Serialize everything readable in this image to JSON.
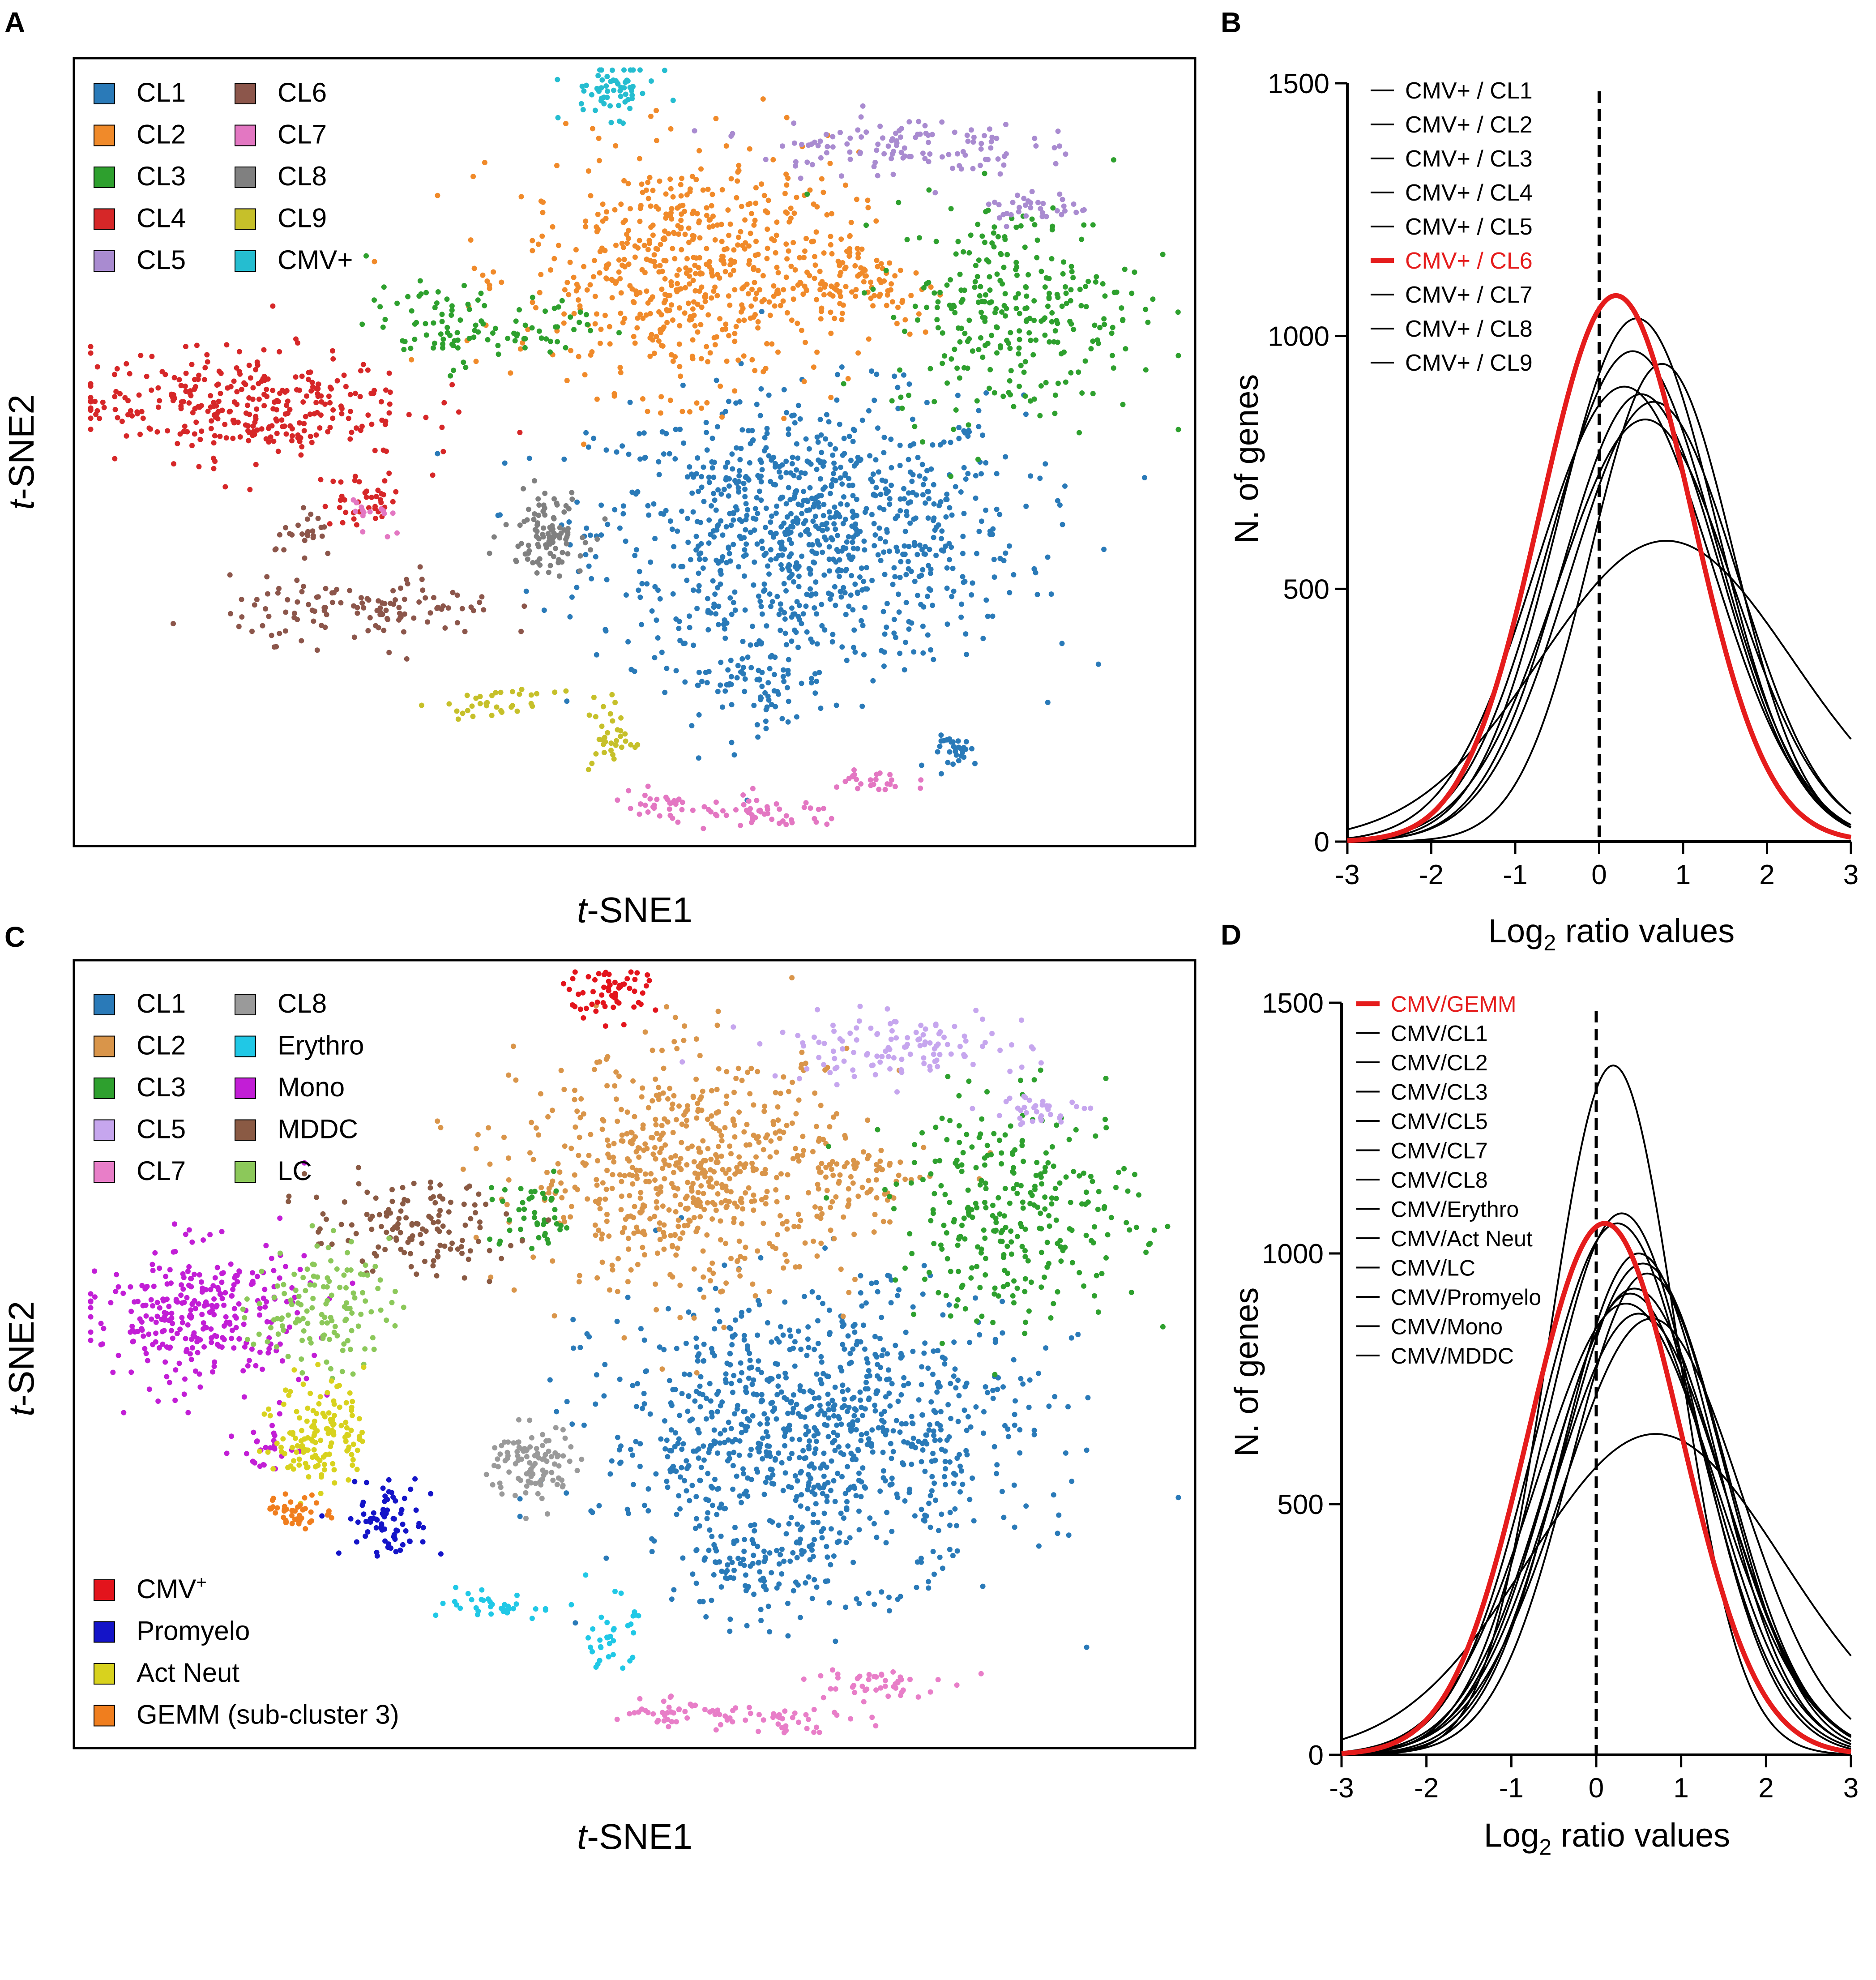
{
  "colors": {
    "CL1": "#2a7ab8",
    "CL2": "#f08a2a",
    "CL3": "#2ea02e",
    "CL4": "#d62728",
    "CL5": "#a98bd0",
    "CL6": "#8c564b",
    "CL7": "#e377c2",
    "CL8": "#808080",
    "CL9": "#c6c02a",
    "CMVplus": "#25bdd0",
    "C_CL2": "#d9954a",
    "C_CL5": "#c6a6ee",
    "C_CL7": "#e87ec8",
    "C_CL8": "#9a9a9a",
    "Erythro": "#20c8e6",
    "Mono": "#c21ed6",
    "MDDC": "#8a5a44",
    "LC": "#8cc85a",
    "CMV": "#e3141c",
    "Promyelo": "#1414c8",
    "ActNeut": "#d8d21e",
    "GEMM": "#f07e1e",
    "highlight": "#e51c1c",
    "curve": "#000000"
  },
  "chart_data": [
    {
      "panel": "A",
      "type": "scatter",
      "xlabel_italic": "t",
      "xlabel": "-SNE1",
      "ylabel_italic": "t",
      "ylabel": "-SNE2",
      "legend": [
        {
          "key": "CL1",
          "label": "CL1"
        },
        {
          "key": "CL2",
          "label": "CL2"
        },
        {
          "key": "CL3",
          "label": "CL3"
        },
        {
          "key": "CL4",
          "label": "CL4"
        },
        {
          "key": "CL5",
          "label": "CL5"
        },
        {
          "key": "CL6",
          "label": "CL6"
        },
        {
          "key": "CL7",
          "label": "CL7"
        },
        {
          "key": "CL8",
          "label": "CL8"
        },
        {
          "key": "CL9",
          "label": "CL9"
        },
        {
          "key": "CMVplus",
          "label": "CMV+"
        }
      ],
      "clusters": [
        {
          "key": "CL1",
          "cx": 0.655,
          "cy": 0.4,
          "sx": 0.095,
          "sy": 0.085,
          "n": 950
        },
        {
          "key": "CL1",
          "cx": 0.605,
          "cy": 0.21,
          "sx": 0.035,
          "sy": 0.03,
          "n": 90
        },
        {
          "key": "CL1",
          "cx": 0.79,
          "cy": 0.12,
          "sx": 0.012,
          "sy": 0.01,
          "n": 30
        },
        {
          "key": "CL2",
          "cx": 0.55,
          "cy": 0.73,
          "sx": 0.075,
          "sy": 0.075,
          "n": 620
        },
        {
          "key": "CL2",
          "cx": 0.7,
          "cy": 0.72,
          "sx": 0.03,
          "sy": 0.03,
          "n": 70
        },
        {
          "key": "CL3",
          "cx": 0.84,
          "cy": 0.68,
          "sx": 0.055,
          "sy": 0.07,
          "n": 290
        },
        {
          "key": "CL3",
          "cx": 0.33,
          "cy": 0.66,
          "sx": 0.035,
          "sy": 0.025,
          "n": 80
        },
        {
          "key": "CL3",
          "cx": 0.43,
          "cy": 0.66,
          "sx": 0.02,
          "sy": 0.02,
          "n": 25
        },
        {
          "key": "CL4",
          "cx": 0.15,
          "cy": 0.56,
          "sx": 0.075,
          "sy": 0.035,
          "n": 330
        },
        {
          "key": "CL4",
          "cx": 0.26,
          "cy": 0.44,
          "sx": 0.02,
          "sy": 0.018,
          "n": 40
        },
        {
          "key": "CL5",
          "cx": 0.73,
          "cy": 0.89,
          "sx": 0.06,
          "sy": 0.02,
          "n": 120
        },
        {
          "key": "CL5",
          "cx": 0.86,
          "cy": 0.81,
          "sx": 0.025,
          "sy": 0.01,
          "n": 35
        },
        {
          "key": "CL6",
          "cx": 0.26,
          "cy": 0.3,
          "sx": 0.06,
          "sy": 0.02,
          "n": 120
        },
        {
          "key": "CL6",
          "cx": 0.21,
          "cy": 0.39,
          "sx": 0.015,
          "sy": 0.015,
          "n": 25
        },
        {
          "key": "CL7",
          "cx": 0.62,
          "cy": 0.04,
          "sx": 0.035,
          "sy": 0.01,
          "n": 50
        },
        {
          "key": "CL7",
          "cx": 0.52,
          "cy": 0.05,
          "sx": 0.02,
          "sy": 0.01,
          "n": 30
        },
        {
          "key": "CL7",
          "cx": 0.71,
          "cy": 0.08,
          "sx": 0.02,
          "sy": 0.01,
          "n": 25
        },
        {
          "key": "CL7",
          "cx": 0.27,
          "cy": 0.42,
          "sx": 0.012,
          "sy": 0.015,
          "n": 15
        },
        {
          "key": "CL8",
          "cx": 0.42,
          "cy": 0.4,
          "sx": 0.018,
          "sy": 0.025,
          "n": 100
        },
        {
          "key": "CL9",
          "cx": 0.38,
          "cy": 0.18,
          "sx": 0.025,
          "sy": 0.008,
          "n": 35
        },
        {
          "key": "CL9",
          "cx": 0.48,
          "cy": 0.14,
          "sx": 0.01,
          "sy": 0.025,
          "n": 35
        },
        {
          "key": "CMVplus",
          "cx": 0.48,
          "cy": 0.96,
          "sx": 0.02,
          "sy": 0.018,
          "n": 60
        }
      ]
    },
    {
      "panel": "B",
      "type": "line",
      "xlabel": "Log",
      "xlabel_sub": "2",
      "xlabel_rest": " ratio values",
      "ylabel": "N. of genes",
      "xlim": [
        -3,
        3
      ],
      "ylim": [
        0,
        1500
      ],
      "xticks": [
        -3,
        -2,
        -1,
        0,
        1,
        2,
        3
      ],
      "yticks": [
        0,
        500,
        1000,
        1500
      ],
      "reference_x": 0,
      "series": [
        {
          "name": "CMV+ / CL1",
          "mu": 0.45,
          "sd": 0.95,
          "peak": 1035,
          "highlight": false
        },
        {
          "name": "CMV+ / CL2",
          "mu": 0.4,
          "sd": 1.0,
          "peak": 970,
          "highlight": false
        },
        {
          "name": "CMV+ / CL3",
          "mu": 0.5,
          "sd": 0.95,
          "peak": 885,
          "highlight": false
        },
        {
          "name": "CMV+ / CL4",
          "mu": 0.3,
          "sd": 1.05,
          "peak": 900,
          "highlight": false
        },
        {
          "name": "CMV+ / CL5",
          "mu": 0.8,
          "sd": 1.5,
          "peak": 595,
          "highlight": false
        },
        {
          "name": "CMV+ / CL6",
          "mu": 0.2,
          "sd": 0.9,
          "peak": 1080,
          "highlight": true
        },
        {
          "name": "CMV+ / CL7",
          "mu": 0.75,
          "sd": 0.85,
          "peak": 945,
          "highlight": false
        },
        {
          "name": "CMV+ / CL8",
          "mu": 0.65,
          "sd": 1.0,
          "peak": 870,
          "highlight": false
        },
        {
          "name": "CMV+ / CL9",
          "mu": 0.55,
          "sd": 1.05,
          "peak": 835,
          "highlight": false
        }
      ]
    },
    {
      "panel": "C",
      "type": "scatter",
      "xlabel_italic": "t",
      "xlabel": "-SNE1",
      "ylabel_italic": "t",
      "ylabel": "-SNE2",
      "legend": [
        {
          "key": "CL1",
          "label": "CL1"
        },
        {
          "key": "C_CL2",
          "label": "CL2"
        },
        {
          "key": "CL3",
          "label": "CL3"
        },
        {
          "key": "C_CL5",
          "label": "CL5"
        },
        {
          "key": "C_CL7",
          "label": "CL7"
        },
        {
          "key": "C_CL8",
          "label": "CL8"
        },
        {
          "key": "Erythro",
          "label": "Erythro"
        },
        {
          "key": "Mono",
          "label": "Mono"
        },
        {
          "key": "MDDC",
          "label": "MDDC"
        },
        {
          "key": "LC",
          "label": "LC"
        }
      ],
      "legend2": [
        {
          "key": "CMV",
          "label": "CMV",
          "sup": "+"
        },
        {
          "key": "Promyelo",
          "label": "Promyelo",
          "sup": ""
        },
        {
          "key": "ActNeut",
          "label": "Act Neut",
          "sup": ""
        },
        {
          "key": "GEMM",
          "label": "GEMM (sub-cluster 3)",
          "sup": ""
        }
      ],
      "clusters": [
        {
          "key": "CL1",
          "cx": 0.66,
          "cy": 0.4,
          "sx": 0.095,
          "sy": 0.09,
          "n": 950
        },
        {
          "key": "CL1",
          "cx": 0.6,
          "cy": 0.22,
          "sx": 0.035,
          "sy": 0.03,
          "n": 90
        },
        {
          "key": "C_CL2",
          "cx": 0.55,
          "cy": 0.73,
          "sx": 0.075,
          "sy": 0.075,
          "n": 620
        },
        {
          "key": "C_CL2",
          "cx": 0.7,
          "cy": 0.72,
          "sx": 0.03,
          "sy": 0.03,
          "n": 70
        },
        {
          "key": "CL3",
          "cx": 0.84,
          "cy": 0.68,
          "sx": 0.055,
          "sy": 0.07,
          "n": 290
        },
        {
          "key": "CL3",
          "cx": 0.41,
          "cy": 0.67,
          "sx": 0.02,
          "sy": 0.025,
          "n": 45
        },
        {
          "key": "C_CL5",
          "cx": 0.73,
          "cy": 0.89,
          "sx": 0.06,
          "sy": 0.02,
          "n": 120
        },
        {
          "key": "C_CL5",
          "cx": 0.86,
          "cy": 0.81,
          "sx": 0.025,
          "sy": 0.01,
          "n": 35
        },
        {
          "key": "C_CL7",
          "cx": 0.62,
          "cy": 0.04,
          "sx": 0.035,
          "sy": 0.01,
          "n": 50
        },
        {
          "key": "C_CL7",
          "cx": 0.52,
          "cy": 0.05,
          "sx": 0.02,
          "sy": 0.01,
          "n": 30
        },
        {
          "key": "C_CL7",
          "cx": 0.71,
          "cy": 0.08,
          "sx": 0.03,
          "sy": 0.012,
          "n": 45
        },
        {
          "key": "C_CL8",
          "cx": 0.41,
          "cy": 0.36,
          "sx": 0.02,
          "sy": 0.025,
          "n": 100
        },
        {
          "key": "Erythro",
          "cx": 0.38,
          "cy": 0.18,
          "sx": 0.025,
          "sy": 0.008,
          "n": 35
        },
        {
          "key": "Erythro",
          "cx": 0.48,
          "cy": 0.14,
          "sx": 0.01,
          "sy": 0.025,
          "n": 35
        },
        {
          "key": "Mono",
          "cx": 0.11,
          "cy": 0.55,
          "sx": 0.05,
          "sy": 0.045,
          "n": 300
        },
        {
          "key": "Mono",
          "cx": 0.17,
          "cy": 0.38,
          "sx": 0.012,
          "sy": 0.015,
          "n": 25
        },
        {
          "key": "MDDC",
          "cx": 0.3,
          "cy": 0.66,
          "sx": 0.045,
          "sy": 0.03,
          "n": 130
        },
        {
          "key": "LC",
          "cx": 0.22,
          "cy": 0.56,
          "sx": 0.03,
          "sy": 0.04,
          "n": 130
        },
        {
          "key": "ActNeut",
          "cx": 0.22,
          "cy": 0.4,
          "sx": 0.02,
          "sy": 0.035,
          "n": 140
        },
        {
          "key": "GEMM",
          "cx": 0.2,
          "cy": 0.3,
          "sx": 0.015,
          "sy": 0.01,
          "n": 45
        },
        {
          "key": "Promyelo",
          "cx": 0.28,
          "cy": 0.29,
          "sx": 0.02,
          "sy": 0.025,
          "n": 75
        },
        {
          "key": "CMV",
          "cx": 0.48,
          "cy": 0.96,
          "sx": 0.02,
          "sy": 0.018,
          "n": 60
        }
      ]
    },
    {
      "panel": "D",
      "type": "line",
      "xlabel": "Log",
      "xlabel_sub": "2",
      "xlabel_rest": " ratio values",
      "ylabel": "N. of genes",
      "xlim": [
        -3,
        3
      ],
      "ylim": [
        0,
        1500
      ],
      "xticks": [
        -3,
        -2,
        -1,
        0,
        1,
        2,
        3
      ],
      "yticks": [
        0,
        500,
        1000,
        1500
      ],
      "reference_x": 0,
      "series": [
        {
          "name": "CMV/GEMM",
          "mu": 0.1,
          "sd": 0.9,
          "peak": 1060,
          "highlight": true
        },
        {
          "name": "CMV/CL1",
          "mu": 0.2,
          "sd": 0.75,
          "peak": 1375,
          "highlight": false
        },
        {
          "name": "CMV/CL2",
          "mu": 0.3,
          "sd": 0.9,
          "peak": 1080,
          "highlight": false
        },
        {
          "name": "CMV/CL3",
          "mu": 0.25,
          "sd": 0.95,
          "peak": 1060,
          "highlight": false
        },
        {
          "name": "CMV/CL5",
          "mu": 0.7,
          "sd": 1.5,
          "peak": 640,
          "highlight": false
        },
        {
          "name": "CMV/CL7",
          "mu": 0.5,
          "sd": 0.9,
          "peak": 1000,
          "highlight": false
        },
        {
          "name": "CMV/CL8",
          "mu": 0.45,
          "sd": 1.0,
          "peak": 930,
          "highlight": false
        },
        {
          "name": "CMV/Erythro",
          "mu": 0.55,
          "sd": 0.95,
          "peak": 980,
          "highlight": false
        },
        {
          "name": "CMV/Act Neut",
          "mu": 0.35,
          "sd": 1.05,
          "peak": 900,
          "highlight": false
        },
        {
          "name": "CMV/LC",
          "mu": 0.6,
          "sd": 0.9,
          "peak": 960,
          "highlight": false
        },
        {
          "name": "CMV/Promyelo",
          "mu": 0.4,
          "sd": 0.95,
          "peak": 920,
          "highlight": false
        },
        {
          "name": "CMV/Mono",
          "mu": 0.5,
          "sd": 1.0,
          "peak": 880,
          "highlight": false
        },
        {
          "name": "CMV/MDDC",
          "mu": 0.65,
          "sd": 1.05,
          "peak": 870,
          "highlight": false
        }
      ]
    }
  ],
  "panel_labels": {
    "A": "A",
    "B": "B",
    "C": "C",
    "D": "D"
  }
}
